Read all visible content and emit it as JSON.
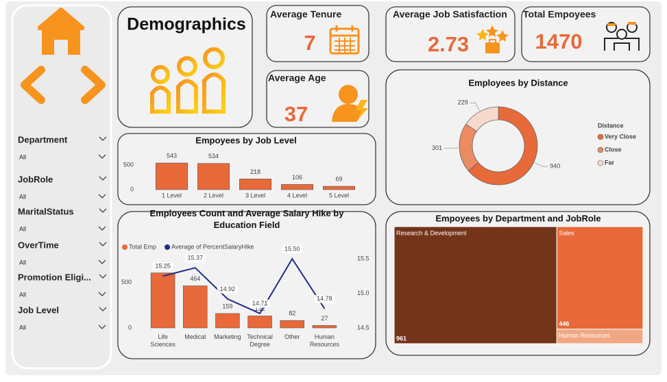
{
  "title": "Demographics",
  "kpis": [
    {
      "label": "Average Tenure",
      "value": 7
    },
    {
      "label": "Average Age",
      "value": 37
    },
    {
      "label": "Average Job Satisfaction",
      "value": 2.73
    },
    {
      "label": "Total Empoyees",
      "value": 1470
    }
  ],
  "filters": [
    {
      "label": "Department",
      "value": "All"
    },
    {
      "label": "JobRole",
      "value": "All"
    },
    {
      "label": "MaritalStatus",
      "value": "All"
    },
    {
      "label": "OverTime",
      "value": "All"
    },
    {
      "label": "Promotion Eligi...",
      "value": "All"
    },
    {
      "label": "Job Level",
      "value": "All"
    }
  ],
  "chart_data": [
    {
      "type": "bar",
      "title": "Empoyees by Job Level",
      "categories": [
        "1 Level",
        "2 Level",
        "3 Level",
        "4 Level",
        "5 Level"
      ],
      "values": [
        543,
        534,
        218,
        106,
        69
      ],
      "color": "#e8693a",
      "ylim": [
        0,
        600
      ],
      "yticks": [
        0,
        500
      ]
    },
    {
      "type": "donut",
      "title": "Employees by Distance",
      "legend_title": "Distance",
      "categories": [
        "Very Close",
        "Close",
        "Far"
      ],
      "values": [
        940,
        301,
        229
      ],
      "colors": [
        "#e8693a",
        "#ec8a62",
        "#f6d9cc"
      ],
      "legend": "right"
    },
    {
      "type": "combo",
      "title": "Employees Count and Average Salary Hike by Education Field",
      "categories": [
        "Life Sciences",
        "Medical",
        "Marketing",
        "Technical Degree",
        "Other",
        "Human Resources"
      ],
      "series": [
        {
          "name": "Total Emp",
          "type": "bar",
          "color": "#e8693a",
          "values": [
            606,
            464,
            159,
            132,
            82,
            27
          ]
        },
        {
          "name": "Average of PercentSalaryHike",
          "type": "line",
          "axis": "y2",
          "color": "#1f2d8a",
          "values": [
            15.25,
            15.37,
            14.92,
            14.71,
            15.5,
            14.78
          ],
          "value_labels": [
            "15.25",
            "15.37",
            "14.92",
            "14.71",
            "15.50",
            "14.78"
          ]
        }
      ],
      "ylim": [
        0,
        800
      ],
      "yticks": [
        0,
        500
      ],
      "y2lim": [
        14.5,
        15.55
      ],
      "y2ticks": [
        14.5,
        {
          "value": 15,
          "label": "15.0"
        },
        15.5
      ],
      "legend": "top-left"
    },
    {
      "type": "treemap",
      "title": "Empoyees by Department and JobRole",
      "categories": [
        "Research & Development",
        "Sales",
        "Human Resources"
      ],
      "values": [
        961,
        446,
        63
      ],
      "colors": [
        "#74341a",
        "#e8693a",
        "#f0a884"
      ]
    }
  ]
}
